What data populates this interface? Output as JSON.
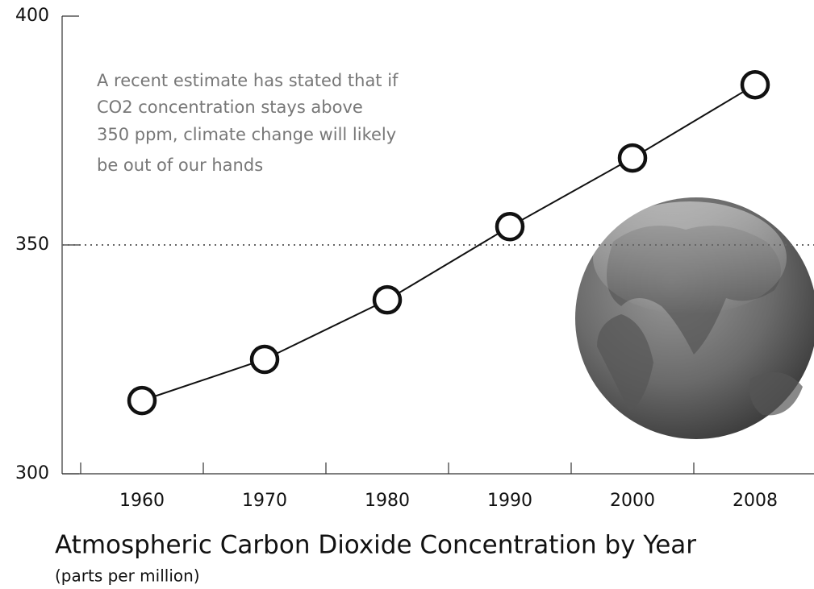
{
  "chart_data": {
    "type": "line",
    "title": "Atmospheric Carbon Dioxide Concentration by Year",
    "subtitle": "(parts per million)",
    "annotation": [
      "A recent estimate has stated that if",
      "CO2 concentration stays above",
      "350 ppm, climate change will likely",
      "be out of our hands"
    ],
    "categories": [
      "1960",
      "1970",
      "1980",
      "1990",
      "2000",
      "2008"
    ],
    "values": [
      316,
      325,
      338,
      354,
      369,
      385
    ],
    "color": "#111111",
    "ylim": [
      300,
      400
    ],
    "yticks": [
      300,
      350,
      400
    ],
    "threshold": 350
  }
}
